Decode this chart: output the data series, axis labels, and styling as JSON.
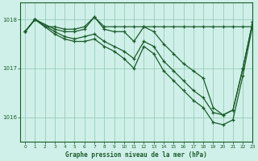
{
  "background_color": "#cff0e8",
  "grid_color": "#99ccbb",
  "line_color": "#1a5c2a",
  "title": "Graphe pression niveau de la mer (hPa)",
  "ylabel_ticks": [
    1016,
    1017,
    1018
  ],
  "xlim": [
    -0.5,
    23
  ],
  "ylim": [
    1015.5,
    1018.35
  ],
  "series": [
    {
      "x": [
        0,
        1,
        2,
        3,
        4,
        5,
        6,
        7,
        8,
        9,
        10,
        11,
        12,
        13,
        14,
        15,
        16,
        17,
        18,
        19,
        20,
        21,
        22,
        23
      ],
      "y": [
        1017.75,
        1018.0,
        1017.85,
        1017.85,
        1017.8,
        1017.8,
        1017.85,
        1018.05,
        1017.85,
        1017.85,
        1017.85,
        1017.85,
        1017.85,
        1017.85,
        1017.85,
        1017.85,
        1017.85,
        1017.85,
        1017.85,
        1017.85,
        1017.85,
        1017.85,
        1017.85,
        1017.85
      ]
    },
    {
      "x": [
        0,
        1,
        3,
        4,
        5,
        6,
        7,
        8,
        9,
        10,
        11,
        12,
        13,
        14,
        15,
        16,
        17,
        18,
        19,
        20,
        21,
        22,
        23
      ],
      "y": [
        1017.75,
        1018.0,
        1017.8,
        1017.75,
        1017.75,
        1017.8,
        1018.05,
        1017.8,
        1017.75,
        1017.75,
        1017.55,
        1017.85,
        1017.75,
        1017.5,
        1017.3,
        1017.1,
        1016.95,
        1016.8,
        1016.2,
        1016.05,
        1016.15,
        1017.0,
        1017.95
      ]
    },
    {
      "x": [
        0,
        1,
        3,
        4,
        5,
        6,
        7,
        8,
        9,
        10,
        11,
        12,
        13,
        14,
        15,
        16,
        17,
        18,
        19,
        20,
        21,
        22,
        23
      ],
      "y": [
        1017.75,
        1018.0,
        1017.75,
        1017.65,
        1017.6,
        1017.65,
        1017.7,
        1017.55,
        1017.45,
        1017.35,
        1017.2,
        1017.55,
        1017.45,
        1017.15,
        1016.95,
        1016.75,
        1016.55,
        1016.4,
        1016.1,
        1016.05,
        1016.15,
        1017.0,
        1017.95
      ]
    },
    {
      "x": [
        0,
        1,
        3,
        4,
        5,
        6,
        7,
        8,
        9,
        10,
        11,
        12,
        13,
        14,
        15,
        16,
        17,
        18,
        19,
        20,
        21,
        22,
        23
      ],
      "y": [
        1017.75,
        1018.0,
        1017.7,
        1017.6,
        1017.55,
        1017.55,
        1017.6,
        1017.45,
        1017.35,
        1017.2,
        1017.0,
        1017.45,
        1017.3,
        1016.95,
        1016.75,
        1016.55,
        1016.35,
        1016.2,
        1015.9,
        1015.85,
        1015.95,
        1016.85,
        1017.9
      ]
    }
  ]
}
